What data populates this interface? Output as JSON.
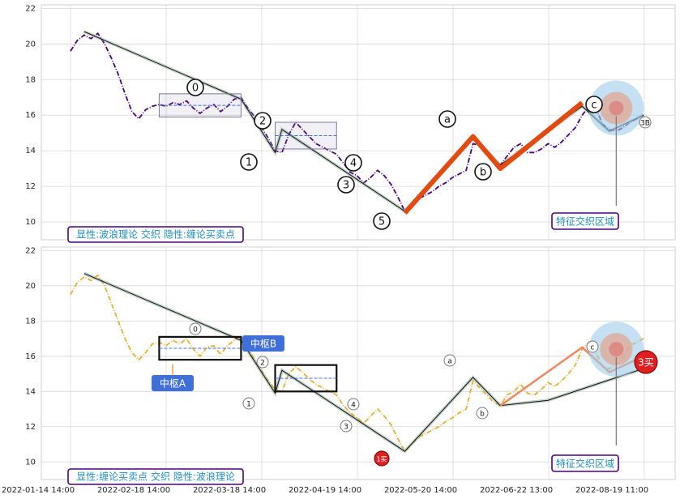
{
  "colors": {
    "price_top": "#4b0082",
    "price_bottom": "#e8b030",
    "stroke_main": "#e34a0f",
    "grid": "#d8d8d8",
    "box_label_bg": "#3f6fd8",
    "zone": "#9ecbea",
    "zone_inner": "#e3a38a",
    "note_border": "#4b0082",
    "note_text": "#1f8fbf",
    "buy_fill": "#e02020"
  },
  "chart_data": [
    {
      "type": "line",
      "panel": "top",
      "ylim": [
        9,
        22.2
      ],
      "yticks": [
        10,
        12,
        14,
        16,
        18,
        20,
        22
      ],
      "grid": true,
      "x_tick_labels": [
        "2022-01-14 14:00",
        "2022-02-18 14:00",
        "2022-03-18 14:00",
        "2022-04-19 14:00",
        "2022-05-20 14:00",
        "2022-06-22 13:00",
        "2022-08-19 11:00"
      ],
      "series": [
        {
          "style": "price",
          "points": [
            [
              0,
              19.6
            ],
            [
              1,
              20.2
            ],
            [
              2,
              20.5
            ],
            [
              3,
              20.3
            ],
            [
              4,
              20.6
            ],
            [
              5,
              20.0
            ],
            [
              6,
              19.2
            ],
            [
              7,
              18.3
            ],
            [
              8,
              17.2
            ],
            [
              9,
              16.2
            ],
            [
              10,
              15.8
            ],
            [
              11,
              16.3
            ],
            [
              12,
              16.5
            ],
            [
              13,
              16.6
            ],
            [
              14,
              16.5
            ],
            [
              15,
              16.7
            ],
            [
              16,
              16.6
            ],
            [
              17,
              16.8
            ],
            [
              18,
              16.4
            ],
            [
              19,
              16.1
            ],
            [
              20,
              16.4
            ],
            [
              21,
              16.6
            ],
            [
              22,
              16.2
            ],
            [
              23,
              16.5
            ],
            [
              24,
              16.9
            ],
            [
              25,
              17.0
            ],
            [
              26,
              16.4
            ],
            [
              27,
              15.9
            ],
            [
              28,
              15.3
            ],
            [
              29,
              14.7
            ],
            [
              30,
              14.0
            ],
            [
              31,
              13.9
            ],
            [
              32,
              14.9
            ],
            [
              33,
              15.6
            ],
            [
              34,
              15.2
            ],
            [
              35,
              14.8
            ],
            [
              36,
              14.4
            ],
            [
              37,
              14.2
            ],
            [
              38,
              14.0
            ],
            [
              39,
              13.8
            ],
            [
              40,
              13.3
            ],
            [
              41,
              12.8
            ],
            [
              42,
              12.6
            ],
            [
              43,
              12.2
            ],
            [
              44,
              12.5
            ],
            [
              45,
              12.9
            ],
            [
              46,
              12.6
            ],
            [
              47,
              12.1
            ],
            [
              48,
              11.4
            ],
            [
              49,
              10.6
            ],
            [
              50,
              11.0
            ],
            [
              51,
              11.3
            ],
            [
              52,
              11.5
            ],
            [
              53,
              11.7
            ],
            [
              54,
              12.0
            ],
            [
              55,
              12.2
            ],
            [
              56,
              12.5
            ],
            [
              57,
              12.7
            ],
            [
              58,
              12.9
            ],
            [
              59,
              14.4
            ],
            [
              60,
              14.3
            ],
            [
              61,
              13.9
            ],
            [
              62,
              13.5
            ],
            [
              63,
              13.2
            ],
            [
              64,
              13.7
            ],
            [
              65,
              14.2
            ],
            [
              66,
              14.4
            ],
            [
              67,
              13.9
            ],
            [
              68,
              13.9
            ],
            [
              69,
              14.1
            ],
            [
              70,
              14.4
            ],
            [
              71,
              14.2
            ],
            [
              72,
              14.5
            ],
            [
              73,
              14.9
            ],
            [
              74,
              15.3
            ],
            [
              75,
              16.0
            ],
            [
              76,
              16.5
            ],
            [
              77,
              16.4
            ],
            [
              78,
              15.5
            ],
            [
              79,
              15.2
            ],
            [
              80,
              15.1
            ],
            [
              81,
              15.3
            ],
            [
              82,
              15.6
            ],
            [
              83,
              15.8
            ],
            [
              84,
              16.0
            ]
          ]
        },
        {
          "style": "zigzag",
          "points": [
            [
              2,
              20.7
            ],
            [
              25,
              16.9
            ],
            [
              30,
              13.9
            ],
            [
              31,
              15.2
            ],
            [
              49,
              10.6
            ],
            [
              59,
              14.8
            ],
            [
              63,
              13.2
            ],
            [
              75,
              16.5
            ],
            [
              79,
              15.1
            ],
            [
              84,
              16.0
            ]
          ]
        },
        {
          "style": "thick",
          "points": [
            [
              49,
              10.5
            ],
            [
              59,
              14.8
            ],
            [
              63,
              13.0
            ],
            [
              75,
              16.7
            ]
          ]
        }
      ],
      "wave_labels": [
        "0",
        "1",
        "2",
        "3",
        "4",
        "5",
        "a",
        "b",
        "c",
        "3B"
      ],
      "note": "显性:波浪理论 交织 隐性:缠论买卖点",
      "zone_label": "特征交织区域"
    },
    {
      "type": "line",
      "panel": "bottom",
      "ylim": [
        9,
        22.2
      ],
      "yticks": [
        10,
        12,
        14,
        16,
        18,
        20,
        22
      ],
      "grid": true,
      "x_tick_labels": [
        "2022-01-14 14:00",
        "2022-02-18 14:00",
        "2022-03-18 14:00",
        "2022-04-19 14:00",
        "2022-05-20 14:00",
        "2022-06-22 13:00",
        "2022-08-19 11:00"
      ],
      "series": [
        {
          "style": "price",
          "points": [
            [
              0,
              19.5
            ],
            [
              1,
              20.2
            ],
            [
              2,
              20.5
            ],
            [
              3,
              20.3
            ],
            [
              4,
              20.6
            ],
            [
              5,
              20.0
            ],
            [
              6,
              19.0
            ],
            [
              7,
              18.0
            ],
            [
              8,
              17.0
            ],
            [
              9,
              16.2
            ],
            [
              10,
              15.8
            ],
            [
              11,
              16.2
            ],
            [
              12,
              16.7
            ],
            [
              13,
              16.8
            ],
            [
              14,
              16.6
            ],
            [
              15,
              16.9
            ],
            [
              16,
              16.7
            ],
            [
              17,
              17.0
            ],
            [
              18,
              16.4
            ],
            [
              19,
              16.0
            ],
            [
              20,
              16.5
            ],
            [
              21,
              16.6
            ],
            [
              22,
              16.1
            ],
            [
              23,
              16.6
            ],
            [
              24,
              16.9
            ],
            [
              25,
              17.1
            ],
            [
              26,
              16.5
            ],
            [
              27,
              15.8
            ],
            [
              28,
              15.2
            ],
            [
              29,
              14.6
            ],
            [
              30,
              14.1
            ],
            [
              31,
              14.0
            ],
            [
              32,
              15.0
            ],
            [
              33,
              15.4
            ],
            [
              34,
              15.1
            ],
            [
              35,
              14.7
            ],
            [
              36,
              14.4
            ],
            [
              37,
              14.2
            ],
            [
              38,
              14.0
            ],
            [
              39,
              13.8
            ],
            [
              40,
              13.2
            ],
            [
              41,
              12.8
            ],
            [
              42,
              12.5
            ],
            [
              43,
              12.2
            ],
            [
              44,
              12.6
            ],
            [
              45,
              13.0
            ],
            [
              46,
              12.6
            ],
            [
              47,
              12.1
            ],
            [
              48,
              11.3
            ],
            [
              49,
              10.6
            ],
            [
              50,
              11.0
            ],
            [
              51,
              11.4
            ],
            [
              52,
              11.6
            ],
            [
              53,
              11.8
            ],
            [
              54,
              12.0
            ],
            [
              55,
              12.3
            ],
            [
              56,
              12.5
            ],
            [
              57,
              12.8
            ],
            [
              58,
              13.0
            ],
            [
              59,
              14.6
            ],
            [
              60,
              14.2
            ],
            [
              61,
              13.8
            ],
            [
              62,
              13.4
            ],
            [
              63,
              13.2
            ],
            [
              64,
              13.8
            ],
            [
              65,
              14.0
            ],
            [
              66,
              14.4
            ],
            [
              67,
              13.9
            ],
            [
              68,
              13.8
            ],
            [
              69,
              14.1
            ],
            [
              70,
              14.5
            ],
            [
              71,
              14.3
            ],
            [
              72,
              14.6
            ],
            [
              73,
              15.0
            ],
            [
              74,
              15.5
            ],
            [
              75,
              16.4
            ],
            [
              76,
              16.8
            ],
            [
              77,
              16.2
            ],
            [
              78,
              15.4
            ],
            [
              79,
              15.3
            ],
            [
              80,
              15.5
            ],
            [
              81,
              16.0
            ],
            [
              82,
              16.6
            ],
            [
              83,
              16.8
            ],
            [
              84,
              17.0
            ]
          ]
        },
        {
          "style": "zigzag",
          "points": [
            [
              2,
              20.7
            ],
            [
              25,
              16.9
            ],
            [
              30,
              13.9
            ],
            [
              31,
              15.2
            ],
            [
              49,
              10.6
            ],
            [
              59,
              14.8
            ],
            [
              63,
              13.2
            ],
            [
              70,
              13.5
            ],
            [
              84,
              15.3
            ]
          ]
        },
        {
          "style": "thin_orange",
          "points": [
            [
              63,
              13.2
            ],
            [
              75,
              16.5
            ],
            [
              79,
              15.1
            ],
            [
              84,
              16.0
            ]
          ]
        }
      ],
      "wave_labels": [
        "0",
        "1",
        "2",
        "3",
        "4",
        "a",
        "b",
        "c"
      ],
      "box_labels": [
        "中枢A",
        "中枢B"
      ],
      "buy_labels": [
        "1买",
        "3买"
      ],
      "note": "显性:缠论买卖点 交织 隐性:波浪理论",
      "zone_label": "特征交织区域"
    }
  ]
}
